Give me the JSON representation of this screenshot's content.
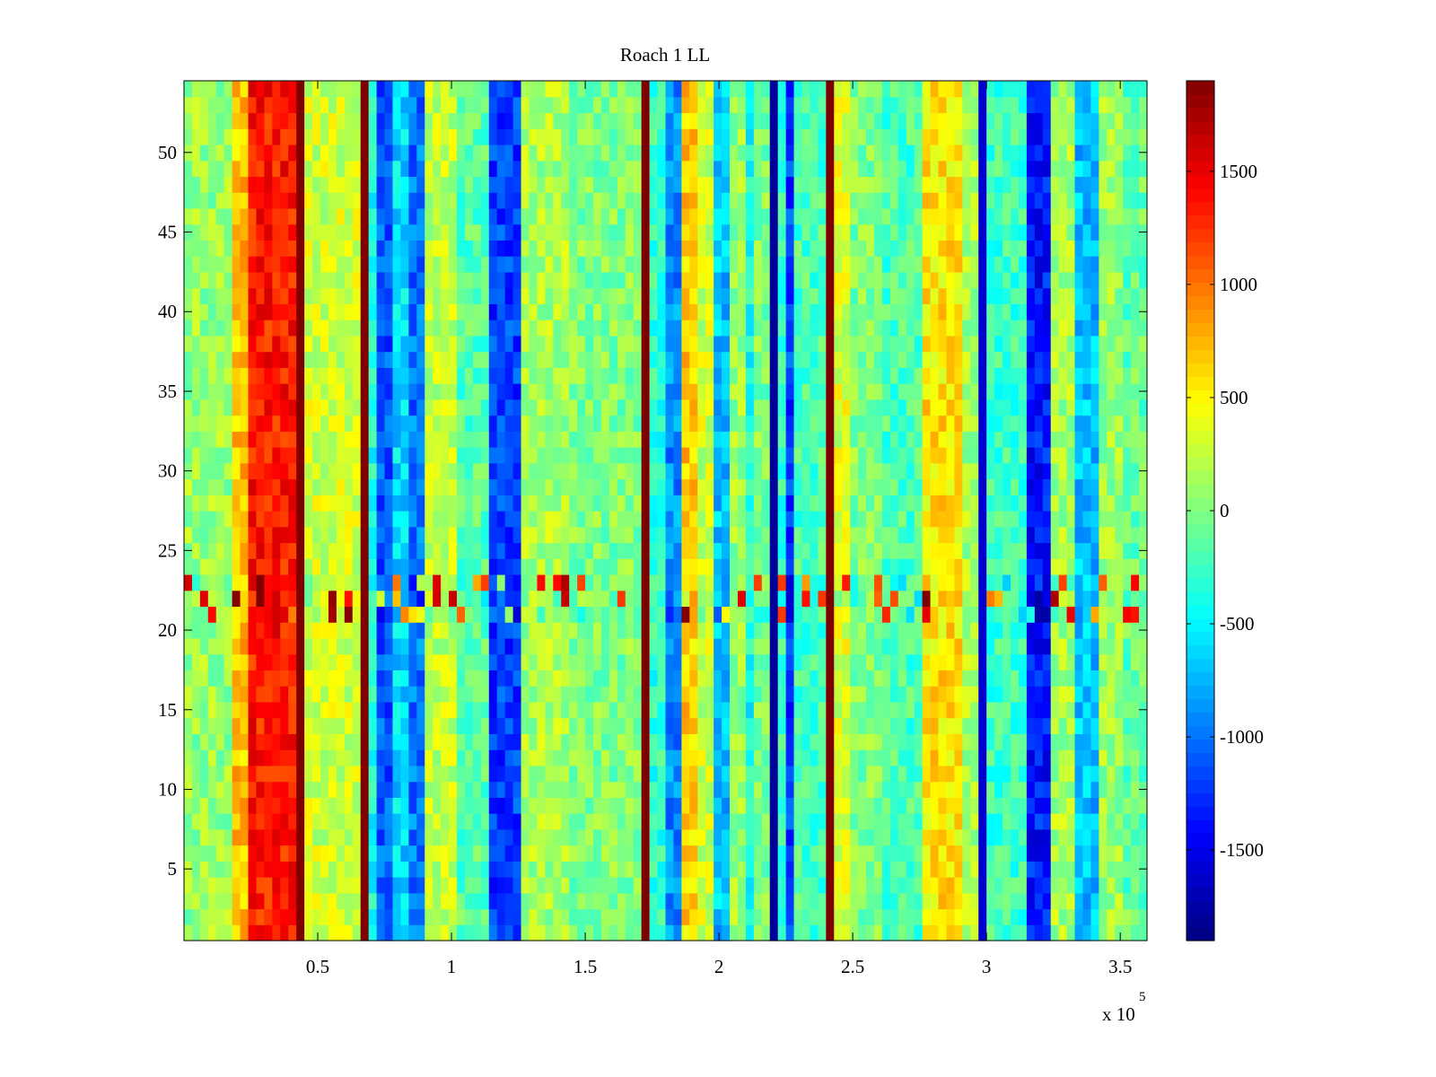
{
  "chart_data": {
    "type": "heatmap",
    "title": "Roach 1 LL",
    "xlabel": "",
    "ylabel": "",
    "x_range": [
      0,
      360000
    ],
    "y_range": [
      0.5,
      54.5
    ],
    "n_rows": 54,
    "x_ticks": [
      50000,
      100000,
      150000,
      200000,
      250000,
      300000,
      350000
    ],
    "x_tick_labels": [
      "0.5",
      "1",
      "1.5",
      "2",
      "2.5",
      "3",
      "3.5"
    ],
    "x_exponent_base": "x 10",
    "x_exponent_power": "5",
    "y_ticks": [
      5,
      10,
      15,
      20,
      25,
      30,
      35,
      40,
      45,
      50
    ],
    "y_tick_labels": [
      "5",
      "10",
      "15",
      "20",
      "25",
      "30",
      "35",
      "40",
      "45",
      "50"
    ],
    "colorbar": {
      "colormap": "jet",
      "range": [
        -1900,
        1900
      ],
      "ticks": [
        -1500,
        -1000,
        -500,
        0,
        500,
        1000,
        1500
      ],
      "tick_labels": [
        "-1500",
        "-1000",
        "-500",
        "0",
        "500",
        "1000",
        "1500"
      ]
    },
    "column_bands": [
      {
        "x_start": 0,
        "x_end": 19000,
        "value": 80
      },
      {
        "x_start": 19000,
        "x_end": 25000,
        "value": 700
      },
      {
        "x_start": 25000,
        "x_end": 43000,
        "value": 1350
      },
      {
        "x_start": 43000,
        "x_end": 44000,
        "value": 1900
      },
      {
        "x_start": 44000,
        "x_end": 66000,
        "value": 300
      },
      {
        "x_start": 66000,
        "x_end": 67000,
        "value": 1900
      },
      {
        "x_start": 67000,
        "x_end": 72000,
        "value": -400
      },
      {
        "x_start": 72000,
        "x_end": 79000,
        "value": -1100
      },
      {
        "x_start": 79000,
        "x_end": 84000,
        "value": -600
      },
      {
        "x_start": 84000,
        "x_end": 90000,
        "value": -1000
      },
      {
        "x_start": 90000,
        "x_end": 103000,
        "value": 250
      },
      {
        "x_start": 103000,
        "x_end": 115000,
        "value": -150
      },
      {
        "x_start": 115000,
        "x_end": 127000,
        "value": -1200
      },
      {
        "x_start": 127000,
        "x_end": 145000,
        "value": 150
      },
      {
        "x_start": 145000,
        "x_end": 173000,
        "value": 0
      },
      {
        "x_start": 173000,
        "x_end": 174000,
        "value": 1900
      },
      {
        "x_start": 174000,
        "x_end": 180000,
        "value": -300
      },
      {
        "x_start": 180000,
        "x_end": 185000,
        "value": -900
      },
      {
        "x_start": 185000,
        "x_end": 193000,
        "value": 650
      },
      {
        "x_start": 193000,
        "x_end": 198000,
        "value": 300
      },
      {
        "x_start": 198000,
        "x_end": 204000,
        "value": -700
      },
      {
        "x_start": 204000,
        "x_end": 210000,
        "value": 100
      },
      {
        "x_start": 210000,
        "x_end": 213000,
        "value": -400
      },
      {
        "x_start": 213000,
        "x_end": 221000,
        "value": 0
      },
      {
        "x_start": 221000,
        "x_end": 222000,
        "value": -1800
      },
      {
        "x_start": 222000,
        "x_end": 224000,
        "value": -300
      },
      {
        "x_start": 224000,
        "x_end": 227000,
        "value": -1200
      },
      {
        "x_start": 227000,
        "x_end": 242000,
        "value": -200
      },
      {
        "x_start": 242000,
        "x_end": 243000,
        "value": 1900
      },
      {
        "x_start": 243000,
        "x_end": 250000,
        "value": 350
      },
      {
        "x_start": 250000,
        "x_end": 262000,
        "value": 0
      },
      {
        "x_start": 262000,
        "x_end": 276000,
        "value": -200
      },
      {
        "x_start": 276000,
        "x_end": 290000,
        "value": 550
      },
      {
        "x_start": 290000,
        "x_end": 298000,
        "value": 150
      },
      {
        "x_start": 298000,
        "x_end": 299000,
        "value": -1600
      },
      {
        "x_start": 299000,
        "x_end": 314000,
        "value": -250
      },
      {
        "x_start": 314000,
        "x_end": 324000,
        "value": -1350
      },
      {
        "x_start": 324000,
        "x_end": 333000,
        "value": 150
      },
      {
        "x_start": 333000,
        "x_end": 341000,
        "value": -700
      },
      {
        "x_start": 341000,
        "x_end": 350000,
        "value": 100
      },
      {
        "x_start": 350000,
        "x_end": 360000,
        "value": -100
      }
    ],
    "row_bands": [
      {
        "y_start": 20.5,
        "y_end": 23.5,
        "pattern": "alternating noisy stripes"
      }
    ]
  }
}
